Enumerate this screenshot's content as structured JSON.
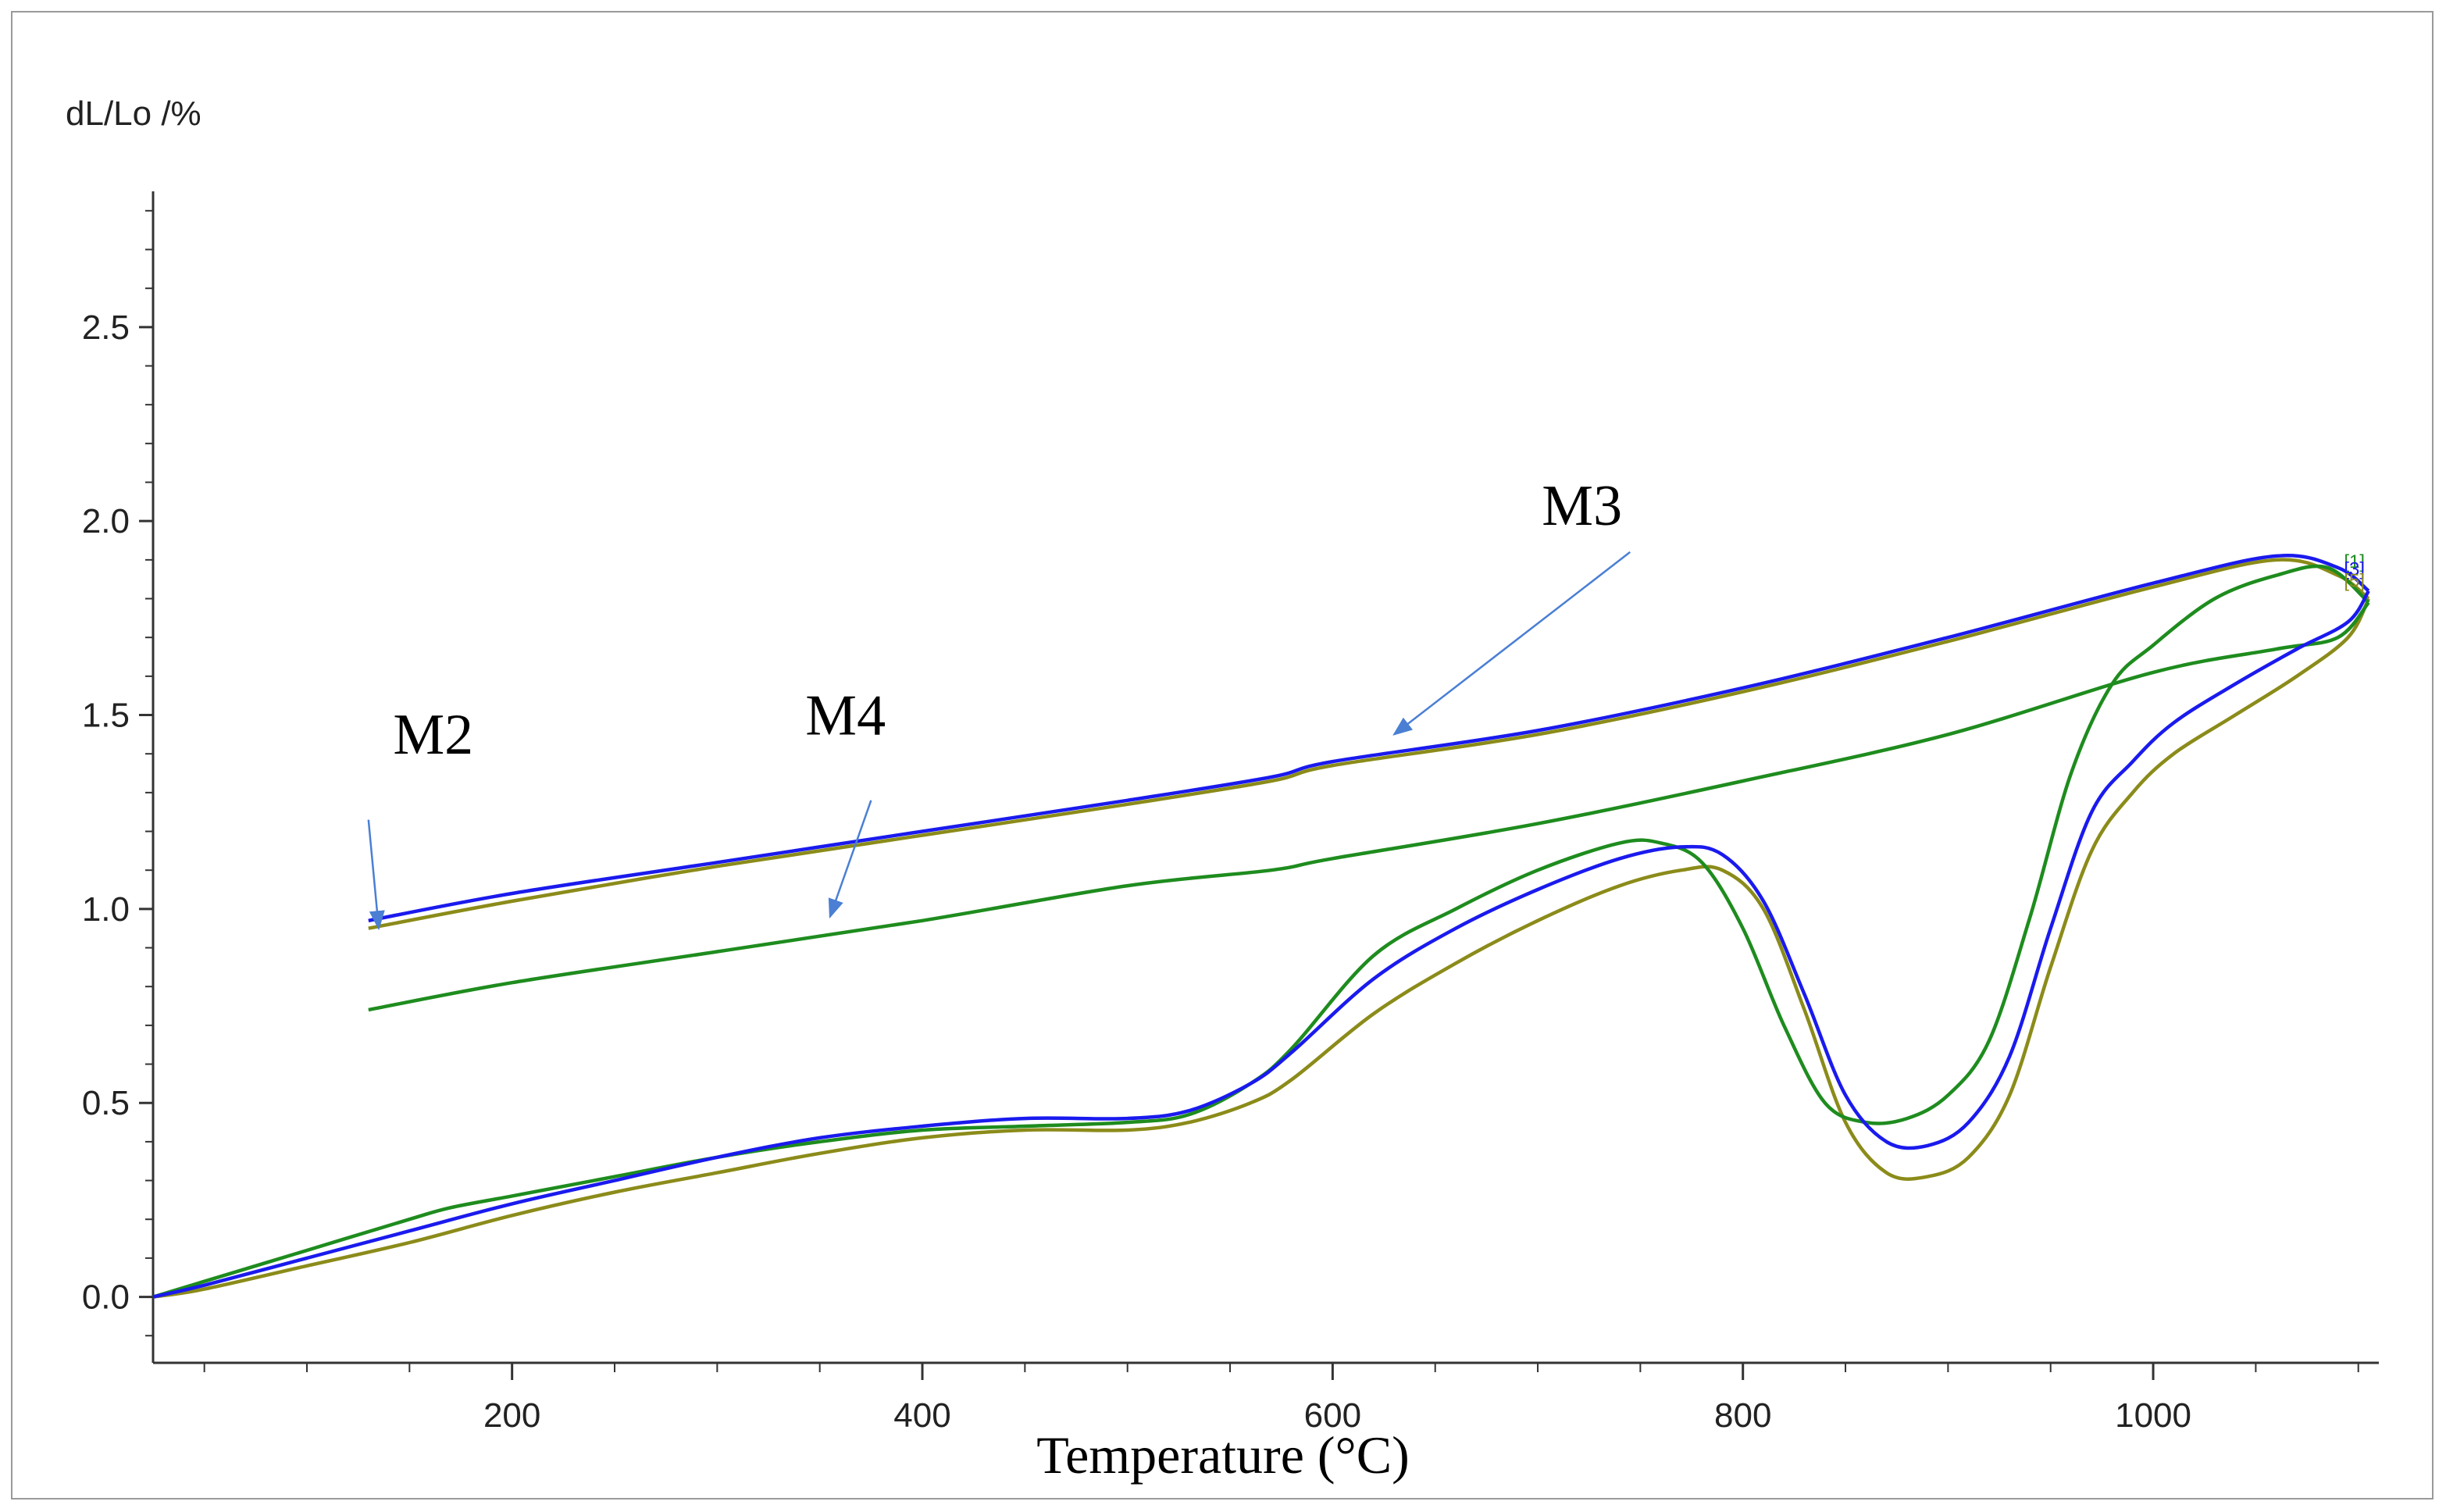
{
  "chart_data": {
    "type": "line",
    "title": "",
    "xlabel": "Temperature (°C)",
    "ylabel": "dL/Lo /%",
    "xlim": [
      25,
      1110
    ],
    "ylim": [
      -0.17,
      2.85
    ],
    "x_ticks": [
      200,
      400,
      600,
      800,
      1000
    ],
    "x_tick_labels": [
      "200",
      "400",
      "600",
      "800",
      "1000"
    ],
    "y_ticks": [
      0.0,
      0.5,
      1.0,
      1.5,
      2.0,
      2.5
    ],
    "y_tick_labels": [
      "0.0",
      "0.5",
      "1.0",
      "1.5",
      "2.0",
      "2.5"
    ],
    "grid": false,
    "series": [
      {
        "name": "M2",
        "color": "#1a1aee",
        "heating": [
          [
            25,
            0.0
          ],
          [
            50,
            0.03
          ],
          [
            100,
            0.1
          ],
          [
            150,
            0.17
          ],
          [
            200,
            0.24
          ],
          [
            250,
            0.3
          ],
          [
            300,
            0.36
          ],
          [
            350,
            0.41
          ],
          [
            400,
            0.44
          ],
          [
            450,
            0.46
          ],
          [
            500,
            0.46
          ],
          [
            530,
            0.48
          ],
          [
            560,
            0.55
          ],
          [
            580,
            0.63
          ],
          [
            620,
            0.82
          ],
          [
            660,
            0.95
          ],
          [
            700,
            1.05
          ],
          [
            740,
            1.13
          ],
          [
            770,
            1.16
          ],
          [
            790,
            1.14
          ],
          [
            810,
            1.02
          ],
          [
            830,
            0.78
          ],
          [
            850,
            0.52
          ],
          [
            870,
            0.4
          ],
          [
            890,
            0.39
          ],
          [
            910,
            0.45
          ],
          [
            930,
            0.62
          ],
          [
            950,
            0.95
          ],
          [
            970,
            1.25
          ],
          [
            990,
            1.38
          ],
          [
            1010,
            1.48
          ],
          [
            1040,
            1.58
          ],
          [
            1070,
            1.67
          ],
          [
            1095,
            1.74
          ],
          [
            1105,
            1.82
          ]
        ],
        "cooling": [
          [
            1105,
            1.82
          ],
          [
            1090,
            1.88
          ],
          [
            1060,
            1.91
          ],
          [
            1000,
            1.84
          ],
          [
            900,
            1.7
          ],
          [
            800,
            1.57
          ],
          [
            700,
            1.46
          ],
          [
            600,
            1.38
          ],
          [
            570,
            1.34
          ],
          [
            500,
            1.28
          ],
          [
            400,
            1.2
          ],
          [
            300,
            1.12
          ],
          [
            200,
            1.04
          ],
          [
            130,
            0.97
          ]
        ]
      },
      {
        "name": "M3",
        "color": "#8b8b1a",
        "heating": [
          [
            25,
            0.0
          ],
          [
            50,
            0.02
          ],
          [
            100,
            0.08
          ],
          [
            150,
            0.14
          ],
          [
            200,
            0.21
          ],
          [
            250,
            0.27
          ],
          [
            300,
            0.32
          ],
          [
            350,
            0.37
          ],
          [
            400,
            0.41
          ],
          [
            450,
            0.43
          ],
          [
            500,
            0.43
          ],
          [
            530,
            0.45
          ],
          [
            560,
            0.5
          ],
          [
            580,
            0.56
          ],
          [
            620,
            0.73
          ],
          [
            660,
            0.86
          ],
          [
            700,
            0.97
          ],
          [
            740,
            1.06
          ],
          [
            770,
            1.1
          ],
          [
            790,
            1.1
          ],
          [
            810,
            1.0
          ],
          [
            830,
            0.74
          ],
          [
            850,
            0.45
          ],
          [
            870,
            0.32
          ],
          [
            890,
            0.31
          ],
          [
            910,
            0.36
          ],
          [
            930,
            0.52
          ],
          [
            950,
            0.85
          ],
          [
            970,
            1.15
          ],
          [
            990,
            1.3
          ],
          [
            1010,
            1.4
          ],
          [
            1040,
            1.5
          ],
          [
            1070,
            1.6
          ],
          [
            1095,
            1.7
          ],
          [
            1105,
            1.8
          ]
        ],
        "cooling": [
          [
            1105,
            1.8
          ],
          [
            1090,
            1.86
          ],
          [
            1060,
            1.9
          ],
          [
            1000,
            1.83
          ],
          [
            900,
            1.69
          ],
          [
            800,
            1.56
          ],
          [
            700,
            1.45
          ],
          [
            600,
            1.37
          ],
          [
            570,
            1.33
          ],
          [
            500,
            1.27
          ],
          [
            400,
            1.19
          ],
          [
            300,
            1.11
          ],
          [
            200,
            1.02
          ],
          [
            130,
            0.95
          ]
        ]
      },
      {
        "name": "M4",
        "color": "#1e8c1e",
        "heating": [
          [
            25,
            0.0
          ],
          [
            50,
            0.04
          ],
          [
            100,
            0.12
          ],
          [
            150,
            0.2
          ],
          [
            170,
            0.23
          ],
          [
            200,
            0.26
          ],
          [
            250,
            0.31
          ],
          [
            300,
            0.36
          ],
          [
            350,
            0.4
          ],
          [
            400,
            0.43
          ],
          [
            450,
            0.44
          ],
          [
            500,
            0.45
          ],
          [
            530,
            0.47
          ],
          [
            560,
            0.55
          ],
          [
            580,
            0.64
          ],
          [
            620,
            0.88
          ],
          [
            660,
            1.0
          ],
          [
            700,
            1.1
          ],
          [
            740,
            1.17
          ],
          [
            760,
            1.17
          ],
          [
            780,
            1.12
          ],
          [
            800,
            0.95
          ],
          [
            820,
            0.7
          ],
          [
            840,
            0.5
          ],
          [
            860,
            0.45
          ],
          [
            880,
            0.46
          ],
          [
            900,
            0.52
          ],
          [
            920,
            0.66
          ],
          [
            940,
            0.98
          ],
          [
            960,
            1.35
          ],
          [
            980,
            1.58
          ],
          [
            1000,
            1.68
          ],
          [
            1030,
            1.8
          ],
          [
            1060,
            1.86
          ],
          [
            1085,
            1.88
          ],
          [
            1105,
            1.79
          ]
        ],
        "cooling": [
          [
            1105,
            1.79
          ],
          [
            1090,
            1.7
          ],
          [
            1060,
            1.67
          ],
          [
            1000,
            1.61
          ],
          [
            900,
            1.45
          ],
          [
            800,
            1.33
          ],
          [
            700,
            1.22
          ],
          [
            600,
            1.13
          ],
          [
            570,
            1.1
          ],
          [
            500,
            1.06
          ],
          [
            400,
            0.97
          ],
          [
            300,
            0.89
          ],
          [
            200,
            0.81
          ],
          [
            130,
            0.74
          ]
        ]
      }
    ],
    "annotations": [
      {
        "text": "M2",
        "label_at": [
          142,
          1.4
        ],
        "arrow_from": [
          130,
          1.23
        ],
        "arrow_to": [
          135,
          0.95
        ]
      },
      {
        "text": "M4",
        "label_at": [
          343,
          1.45
        ],
        "arrow_from": [
          375,
          1.28
        ],
        "arrow_to": [
          355,
          0.98
        ]
      },
      {
        "text": "M3",
        "label_at": [
          702,
          1.99
        ],
        "arrow_from": [
          745,
          1.92
        ],
        "arrow_to": [
          630,
          1.45
        ]
      }
    ],
    "end_markers": [
      {
        "text": "[1]",
        "color": "#1e8c1e",
        "at": [
          1093,
          1.88
        ]
      },
      {
        "text": "[3]",
        "color": "#1a1aee",
        "at": [
          1093,
          1.86
        ]
      },
      {
        "text": "[5]",
        "color": "#8b8b1a",
        "at": [
          1093,
          1.83
        ]
      }
    ]
  }
}
